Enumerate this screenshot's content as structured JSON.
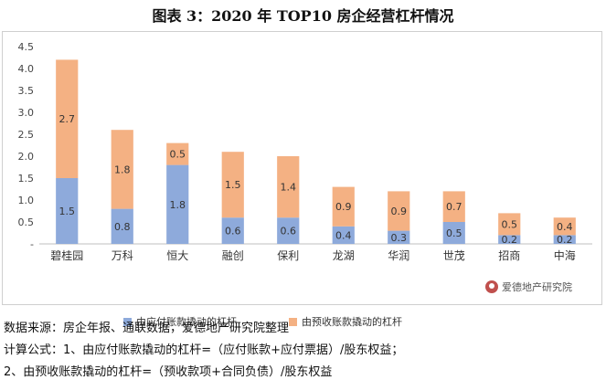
{
  "title": "图表 3：2020 年 TOP10 房企经营杠杆情况",
  "chart_data": {
    "type": "bar",
    "stacked": true,
    "categories": [
      "碧桂园",
      "万科",
      "恒大",
      "融创",
      "保利",
      "龙湖",
      "华润",
      "世茂",
      "招商",
      "中海"
    ],
    "series": [
      {
        "name": "由应付账款撬动的杠杆",
        "color": "#8eaadb",
        "values": [
          1.5,
          0.8,
          1.8,
          0.6,
          0.6,
          0.4,
          0.3,
          0.5,
          0.2,
          0.2
        ],
        "labels": [
          "1.5",
          "0.8",
          "1.8",
          "0.6",
          "0.6",
          "0.4",
          "0.3",
          "0.5",
          "0.2",
          "0.2"
        ]
      },
      {
        "name": "由预收账款撬动的杠杆",
        "color": "#f4b183",
        "values": [
          2.7,
          1.8,
          0.5,
          1.5,
          1.4,
          0.9,
          0.9,
          0.7,
          0.5,
          0.4
        ],
        "labels": [
          "2.7",
          "1.8",
          "0.5",
          "1.5",
          "1.4",
          "0.9",
          "0.9",
          "0.7",
          "0.5",
          "0.4"
        ]
      }
    ],
    "ylim": [
      0,
      4.5
    ],
    "yticks": [
      "-",
      "0.5",
      "1.0",
      "1.5",
      "2.0",
      "2.5",
      "3.0",
      "3.5",
      "4.0",
      "4.5"
    ],
    "grid": false,
    "legend": "bottom"
  },
  "watermark": "爱德地产研究院",
  "notes": [
    "数据来源：房企年报、通联数据，爱德地产研究院整理",
    "计算公式：1、由应付账款撬动的杠杆=（应付账款+应付票据）/股东权益；",
    "2、由预收账款撬动的杠杆=（预收款项+合同负债）/股东权益"
  ]
}
